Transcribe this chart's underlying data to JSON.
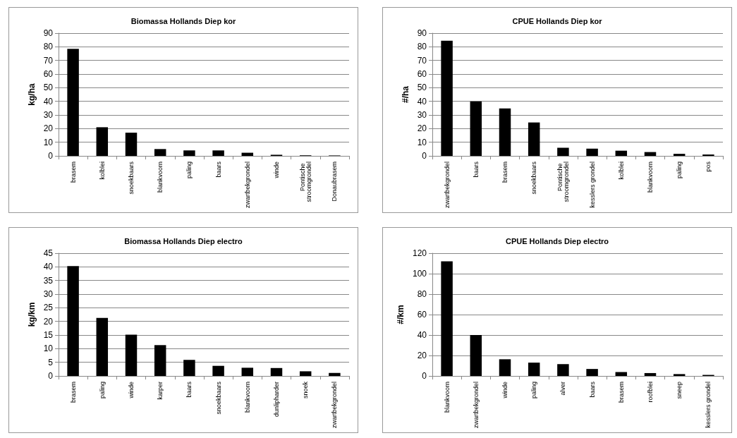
{
  "chart_data": [
    {
      "type": "bar",
      "title": "Biomassa Hollands Diep kor",
      "ylabel": "kg/ha",
      "categories": [
        "brasem",
        "kolblei",
        "snoekbaars",
        "blankvoorn",
        "paling",
        "baars",
        "zwartbekgrondel",
        "winde",
        "Pontische stroomgrondel",
        "Donaubrasem"
      ],
      "values": [
        78.5,
        21,
        17,
        5,
        4,
        4,
        2.3,
        0.8,
        0.4,
        0.3
      ],
      "color": "#000000",
      "ylim": [
        0,
        90
      ],
      "yticks": [
        0,
        10,
        20,
        30,
        40,
        50,
        60,
        70,
        80,
        90
      ],
      "grid": "y"
    },
    {
      "type": "bar",
      "title": "CPUE Hollands Diep kor",
      "ylabel": "#/ha",
      "categories": [
        "zwartbekgrondel",
        "baars",
        "brasem",
        "snoekbaars",
        "Pontische stroomgrondel",
        "kesslers grondel",
        "kolblei",
        "blankvoorn",
        "paling",
        "pos"
      ],
      "values": [
        84.5,
        40,
        34.8,
        24.5,
        6,
        5.3,
        3.8,
        2.8,
        1.5,
        1
      ],
      "color": "#000000",
      "ylim": [
        0,
        90
      ],
      "yticks": [
        0,
        10,
        20,
        30,
        40,
        50,
        60,
        70,
        80,
        90
      ],
      "grid": "y"
    },
    {
      "type": "bar",
      "title": "Biomassa Hollands Diep electro",
      "ylabel": "kg/km",
      "categories": [
        "brasem",
        "paling",
        "winde",
        "karper",
        "baars",
        "snoekbaars",
        "blankvoorn",
        "dunlipharder",
        "snoek",
        "zwartbekgrondel"
      ],
      "values": [
        40.3,
        21.3,
        15.1,
        11.3,
        5.9,
        3.7,
        3,
        2.9,
        1.7,
        1.1
      ],
      "color": "#000000",
      "ylim": [
        0,
        45
      ],
      "yticks": [
        0,
        5,
        10,
        15,
        20,
        25,
        30,
        35,
        40,
        45
      ],
      "grid": "y"
    },
    {
      "type": "bar",
      "title": "CPUE Hollands Diep electro",
      "ylabel": "#/km",
      "categories": [
        "blankvoorn",
        "zwartbekgrondel",
        "winde",
        "paling",
        "alver",
        "baars",
        "brasem",
        "roofblei",
        "sneep",
        "kesslers grondel"
      ],
      "values": [
        112,
        40,
        16.3,
        13,
        11.5,
        6.8,
        3.8,
        2.8,
        1.8,
        1
      ],
      "color": "#000000",
      "ylim": [
        0,
        120
      ],
      "yticks": [
        0,
        20,
        40,
        60,
        80,
        100,
        120
      ],
      "grid": "y"
    }
  ]
}
